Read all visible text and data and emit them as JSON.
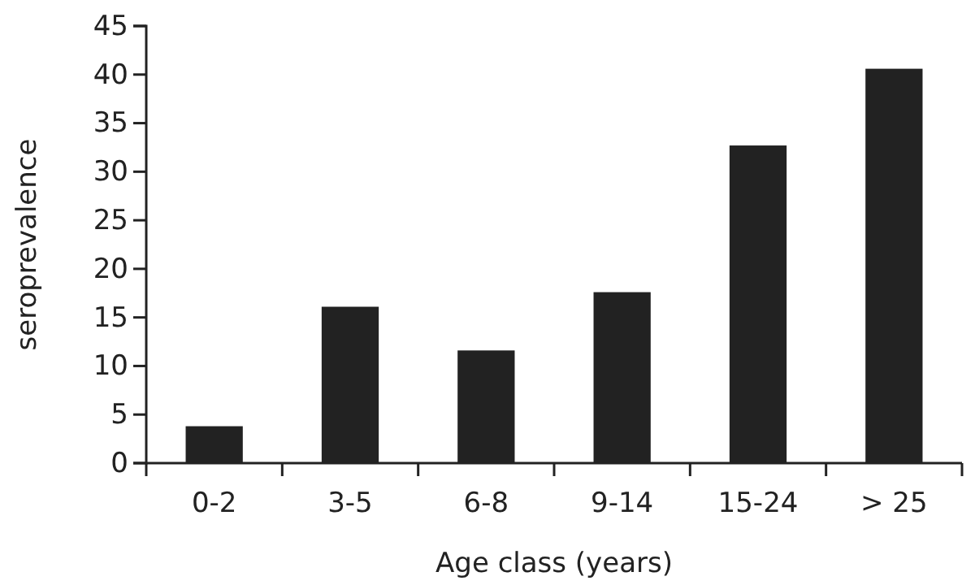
{
  "chart_data": {
    "type": "bar",
    "xlabel": "Age class (years)",
    "ylabel": "seroprevalence",
    "categories": [
      "0-2",
      "3-5",
      "6-8",
      "9-14",
      "15-24",
      "> 25"
    ],
    "values": [
      3.8,
      16.1,
      11.6,
      17.6,
      32.7,
      40.6
    ],
    "color": "#222222",
    "ylim": [
      0,
      45
    ],
    "yticks": [
      0,
      5,
      10,
      15,
      20,
      25,
      30,
      35,
      40,
      45
    ],
    "grid": false
  }
}
